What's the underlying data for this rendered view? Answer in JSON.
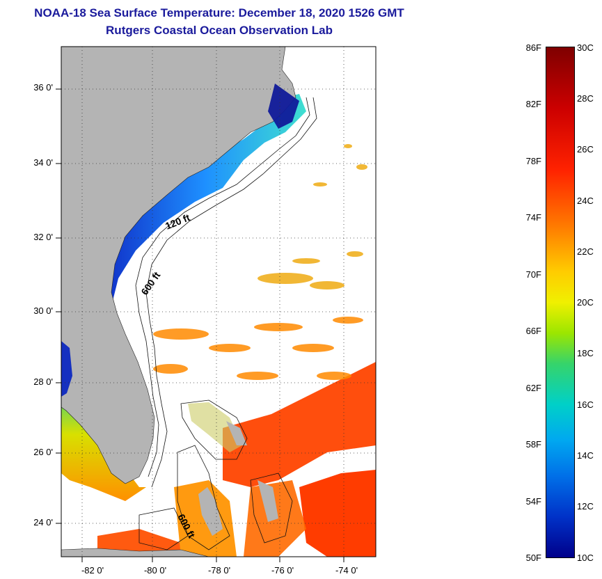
{
  "title": {
    "line1": "NOAA-18 Sea Surface Temperature:  December 18, 2020 1526 GMT",
    "line2": "Rutgers Coastal Ocean Observation Lab"
  },
  "map": {
    "lat_ticks": [
      "36 0'",
      "34 0'",
      "32 0'",
      "30 0'",
      "28 0'",
      "26 0'",
      "24 0'"
    ],
    "lon_ticks": [
      "-82 0'",
      "-80 0'",
      "-78 0'",
      "-76 0'",
      "-74 0'"
    ],
    "contour_labels": [
      "120 ft",
      "600 ft",
      "600 ft"
    ],
    "colors": {
      "land": "#b4b4b4",
      "ocean_nodata": "#ffffff",
      "coastal_cold": "#1e5adc",
      "offshore_warm": "#ff7a00",
      "gulf_stream": "#ff3c00"
    }
  },
  "colorbar": {
    "fahrenheit": [
      "86F",
      "82F",
      "78F",
      "74F",
      "70F",
      "66F",
      "62F",
      "58F",
      "54F",
      "50F"
    ],
    "celsius": [
      "30C",
      "28C",
      "26C",
      "24C",
      "22C",
      "20C",
      "18C",
      "16C",
      "14C",
      "12C",
      "10C"
    ]
  }
}
